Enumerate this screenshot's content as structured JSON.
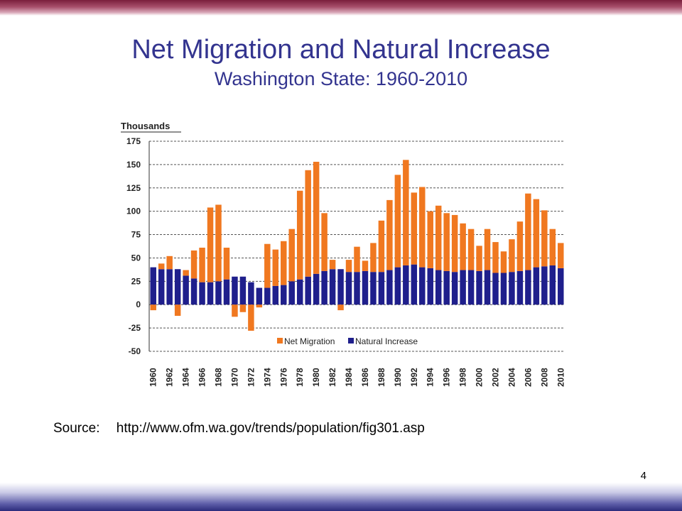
{
  "slide": {
    "title": "Net Migration and Natural Increase",
    "subtitle": "Washington State: 1960-2010",
    "source_label": "Source:",
    "source_url": "http://www.ofm.wa.gov/trends/population/fig301.asp",
    "page_number": "4"
  },
  "chart_data": {
    "type": "bar",
    "stacked": true,
    "ylabel": "Thousands",
    "ylim": [
      -50,
      175
    ],
    "yticks": [
      175,
      150,
      125,
      100,
      75,
      50,
      25,
      0,
      -25,
      -50
    ],
    "grid": "horizontal dashed",
    "legend_position": "bottom-right",
    "x": [
      1960,
      1961,
      1962,
      1963,
      1964,
      1965,
      1966,
      1967,
      1968,
      1969,
      1970,
      1971,
      1972,
      1973,
      1974,
      1975,
      1976,
      1977,
      1978,
      1979,
      1980,
      1981,
      1982,
      1983,
      1984,
      1985,
      1986,
      1987,
      1988,
      1989,
      1990,
      1991,
      1992,
      1993,
      1994,
      1995,
      1996,
      1997,
      1998,
      1999,
      2000,
      2001,
      2002,
      2003,
      2004,
      2005,
      2006,
      2007,
      2008,
      2009,
      2010
    ],
    "x_tick_labels": [
      "1960",
      "1962",
      "1964",
      "1966",
      "1968",
      "1970",
      "1972",
      "1974",
      "1976",
      "1978",
      "1980",
      "1982",
      "1984",
      "1986",
      "1988",
      "1990",
      "1992",
      "1994",
      "1996",
      "1998",
      "2000",
      "2002",
      "2004",
      "2006",
      "2008",
      "2010"
    ],
    "series": [
      {
        "name": "Natural Increase",
        "color": "#1f1f8c",
        "values": [
          40,
          38,
          38,
          38,
          31,
          28,
          24,
          24,
          25,
          27,
          30,
          30,
          24,
          18,
          18,
          20,
          21,
          25,
          27,
          30,
          33,
          36,
          38,
          38,
          35,
          35,
          36,
          35,
          35,
          37,
          40,
          42,
          43,
          40,
          39,
          37,
          36,
          35,
          37,
          37,
          36,
          37,
          34,
          34,
          35,
          36,
          37,
          40,
          41,
          42,
          39
        ]
      },
      {
        "name": "Net Migration",
        "color": "#f07820",
        "values": [
          -6,
          6,
          14,
          -12,
          6,
          30,
          37,
          80,
          82,
          34,
          -13,
          -8,
          -28,
          -3,
          47,
          39,
          47,
          56,
          95,
          114,
          120,
          62,
          10,
          -6,
          13,
          27,
          11,
          31,
          55,
          75,
          99,
          113,
          77,
          86,
          61,
          69,
          62,
          61,
          50,
          44,
          27,
          44,
          33,
          23,
          35,
          53,
          82,
          73,
          60,
          39,
          27
        ]
      }
    ]
  }
}
